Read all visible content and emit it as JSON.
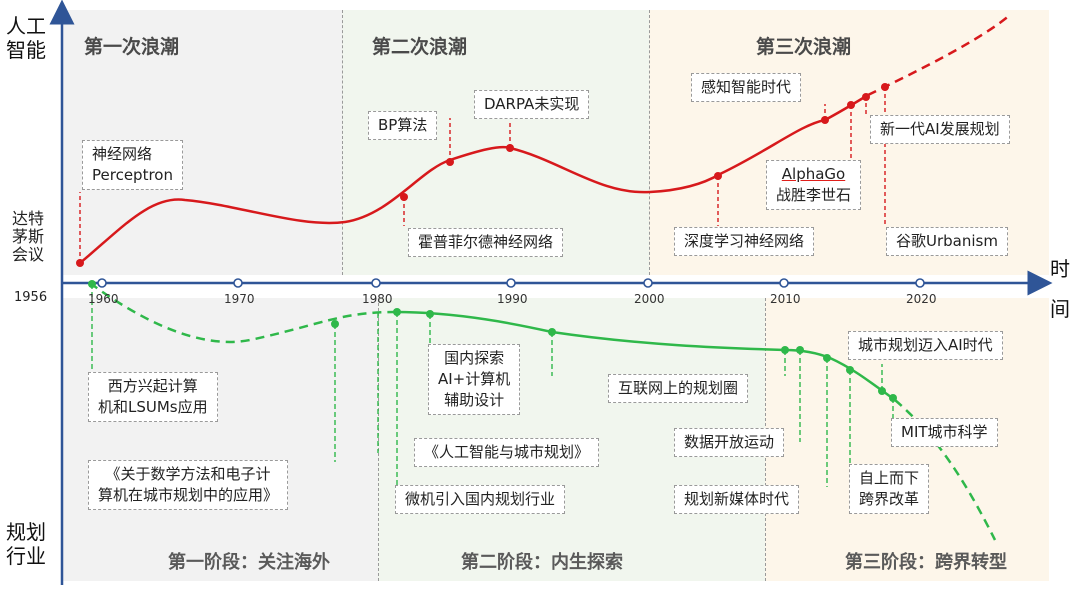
{
  "axes": {
    "y_top_label": [
      "人工",
      "智能"
    ],
    "y_bottom_label": [
      "规划",
      "行业"
    ],
    "x_label": [
      "时",
      "间"
    ],
    "origin_label": "1956",
    "origin_event": [
      "达特",
      "茅斯",
      "会议"
    ],
    "ticks": [
      "1960",
      "1970",
      "1980",
      "1990",
      "2000",
      "2010",
      "2020"
    ]
  },
  "ai_waves": [
    {
      "title": "第一次浪潮"
    },
    {
      "title": "第二次浪潮"
    },
    {
      "title": "第三次浪潮"
    }
  ],
  "ai_events": [
    {
      "lines": [
        "神经网络",
        "Perceptron"
      ]
    },
    {
      "lines": [
        "BP算法"
      ]
    },
    {
      "lines": [
        "DARPA未实现"
      ]
    },
    {
      "lines": [
        "霍普菲尔德神经网络"
      ]
    },
    {
      "lines": [
        "感知智能时代"
      ]
    },
    {
      "lines": [
        "AlphaGo",
        "战胜李世石"
      ]
    },
    {
      "lines": [
        "新一代AI发展规划"
      ]
    },
    {
      "lines": [
        "深度学习神经网络"
      ]
    },
    {
      "lines": [
        "谷歌Urbanism"
      ]
    }
  ],
  "planning_stages": [
    {
      "title": "第一阶段：关注海外"
    },
    {
      "title": "第二阶段：内生探索"
    },
    {
      "title": "第三阶段：跨界转型"
    }
  ],
  "planning_events": [
    {
      "lines": [
        "西方兴起计算",
        "机和LSUMs应用"
      ]
    },
    {
      "lines": [
        "《关于数学方法和电子计",
        "算机在城市规划中的应用》"
      ]
    },
    {
      "lines": [
        "国内探索",
        "AI+计算机",
        "辅助设计"
      ]
    },
    {
      "lines": [
        "《人工智能与城市规划》"
      ]
    },
    {
      "lines": [
        "微机引入国内规划行业"
      ]
    },
    {
      "lines": [
        "互联网上的规划圈"
      ]
    },
    {
      "lines": [
        "数据开放运动"
      ]
    },
    {
      "lines": [
        "规划新媒体时代"
      ]
    },
    {
      "lines": [
        "城市规划迈入AI时代"
      ]
    },
    {
      "lines": [
        "MIT城市科学"
      ]
    },
    {
      "lines": [
        "自上而下",
        "跨界改革"
      ]
    }
  ],
  "colors": {
    "ai_curve": "#d7191c",
    "planning_curve": "#2fb84a",
    "axis": "#2f5597",
    "wave1_bg": "#f2f2f2",
    "wave2_bg": "#f1f6ee",
    "wave3_bg": "#fdf6ea"
  }
}
